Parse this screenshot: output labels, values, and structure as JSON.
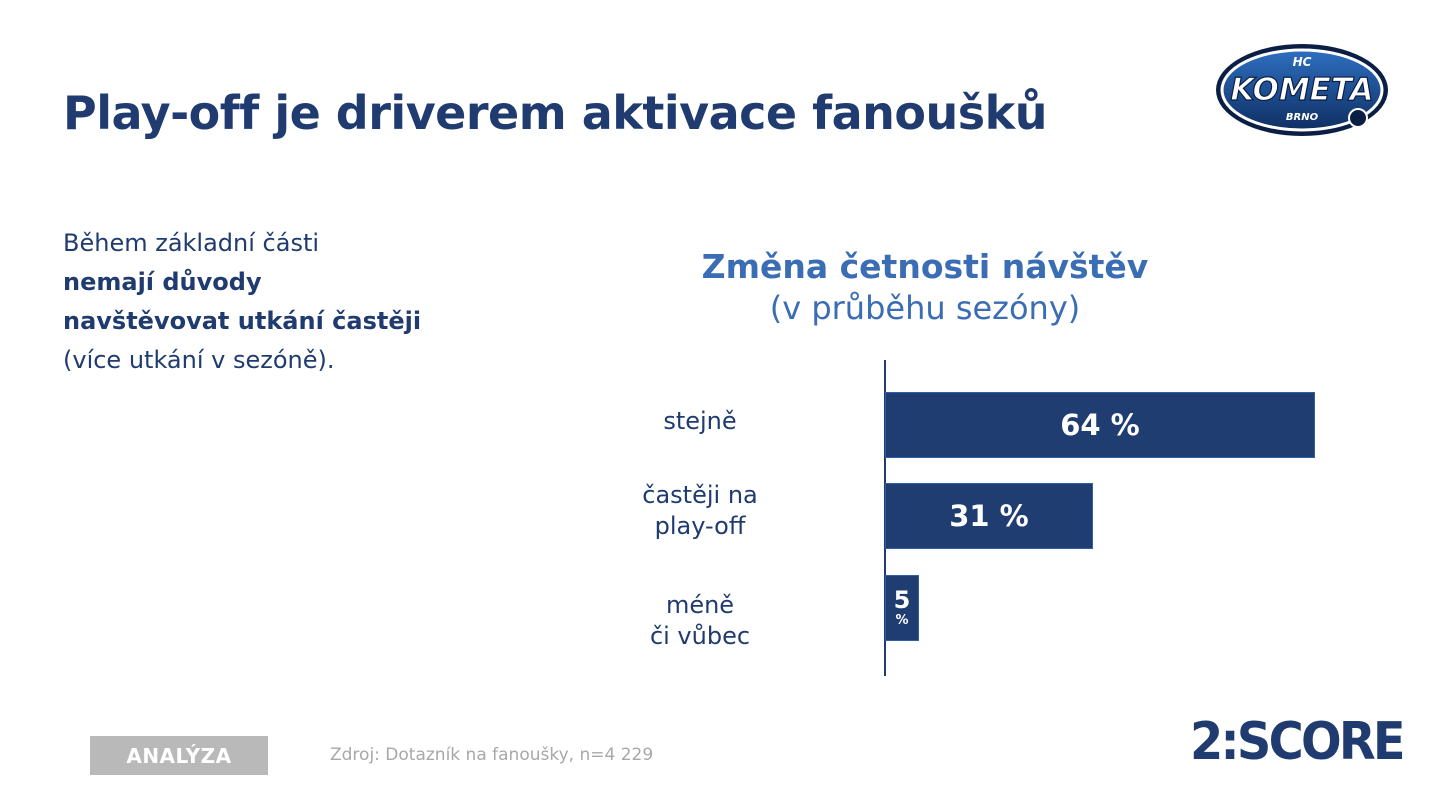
{
  "slide": {
    "title": "Play-off je driverem aktivace fanoušků",
    "intro_normal_1": "Během základní části",
    "intro_bold_1": "nemají důvody",
    "intro_bold_2": "navštěvovat utkání častěji",
    "intro_normal_2": "(více utkání v sezóně).",
    "tag": "ANALÝZA",
    "source": "Zdroj: Dotazník na fanoušky, n=4 229",
    "brand": "2:SCORE"
  },
  "logo": {
    "top": "HC",
    "main": "KOMETA",
    "bottom": "BRNO"
  },
  "colors": {
    "primary": "#1f3b6f",
    "accent": "#3a6db3",
    "bar": "#1f3d70",
    "tag": "#b9b9b9"
  },
  "chart_data": {
    "type": "bar",
    "orientation": "horizontal",
    "title": "Změna četnosti návštěv",
    "subtitle": "(v průběhu sezóny)",
    "categories": [
      "stejně",
      "častěji na play-off",
      "méně či vůbec"
    ],
    "category_lines": [
      [
        "stejně"
      ],
      [
        "častěji na",
        "play-off"
      ],
      [
        "méně",
        "či vůbec"
      ]
    ],
    "values": [
      64,
      31,
      5
    ],
    "labels": [
      "64 %",
      "31 %",
      "5 %"
    ],
    "label_number": [
      "5"
    ],
    "label_unit": [
      "%"
    ],
    "xlim": [
      0,
      100
    ],
    "grid": false,
    "legend": "none"
  }
}
